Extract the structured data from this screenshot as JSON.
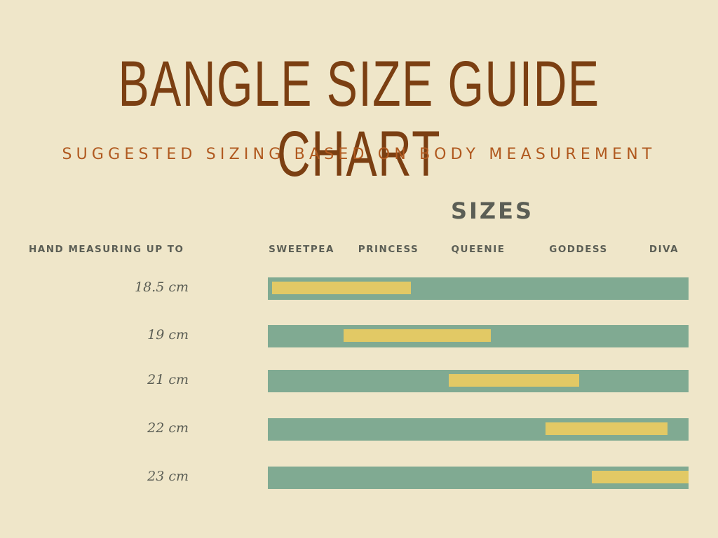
{
  "chart_data": {
    "type": "bar",
    "title": "BANGLE SIZE GUIDE CHART",
    "subtitle": "SUGGESTED SIZING BASED ON BODY MEASUREMENT",
    "x_title": "SIZES",
    "y_title": "HAND MEASURING UP TO",
    "categories": [
      "SWEETPEA",
      "PRINCESS",
      "QUEENIE",
      "GODDESS",
      "DIVA"
    ],
    "scale": "percent of size scale, 0 = smallest, 100 = largest",
    "rows": [
      {
        "label": "18.5 cm",
        "range": [
          1,
          34
        ]
      },
      {
        "label": "19 cm",
        "range": [
          18,
          53
        ]
      },
      {
        "label": "21 cm",
        "range": [
          43,
          74
        ]
      },
      {
        "label": "22 cm",
        "range": [
          66,
          95
        ]
      },
      {
        "label": "23 cm",
        "range": [
          77,
          100
        ]
      }
    ],
    "colors": {
      "background": "#EFE6C9",
      "title": "#7B3F12",
      "subtitle": "#B0591F",
      "track": "#80AA92",
      "fill": "#E2C965",
      "text": "#5B5E55"
    }
  }
}
